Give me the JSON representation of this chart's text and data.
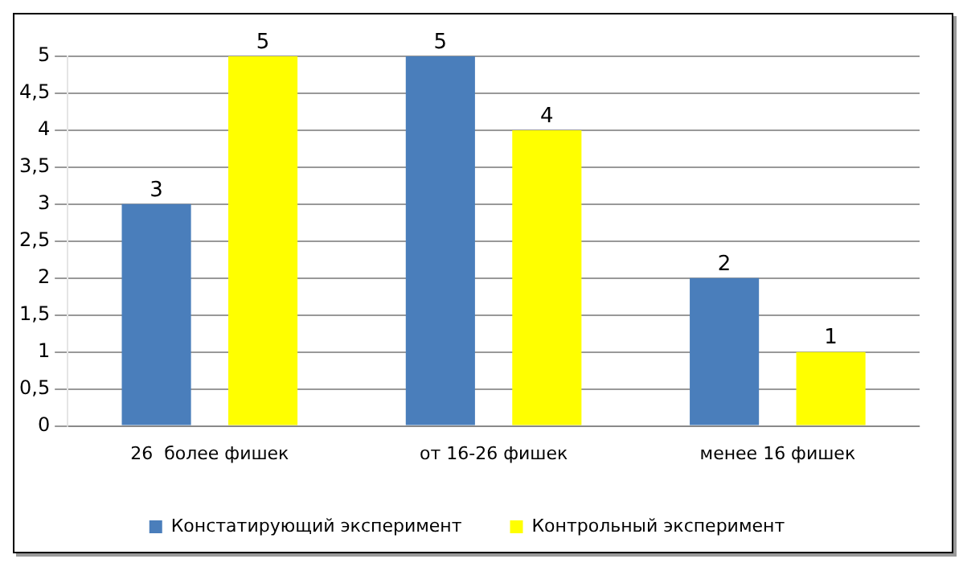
{
  "chart_data": {
    "type": "bar",
    "categories": [
      "26  более фишек",
      "от 16-26 фишек",
      "менее 16 фишек"
    ],
    "series": [
      {
        "name": "Констатирующий эксперимент",
        "color": "#4a7ebb",
        "values": [
          3,
          5,
          2
        ]
      },
      {
        "name": "Контрольный эксперимент",
        "color": "#ffff00",
        "values": [
          5,
          4,
          1
        ]
      }
    ],
    "ylim": [
      0,
      5
    ],
    "yticks": [
      0,
      {
        "value": 0.5,
        "label": "0,5"
      },
      1,
      {
        "value": 1.5,
        "label": "1,5"
      },
      2,
      {
        "value": 2.5,
        "label": "2,5"
      },
      3,
      {
        "value": 3.5,
        "label": "3,5"
      },
      4,
      {
        "value": 4.5,
        "label": "4,5"
      },
      5
    ],
    "grid": "y",
    "legend": "bottom",
    "data_labels": true
  }
}
